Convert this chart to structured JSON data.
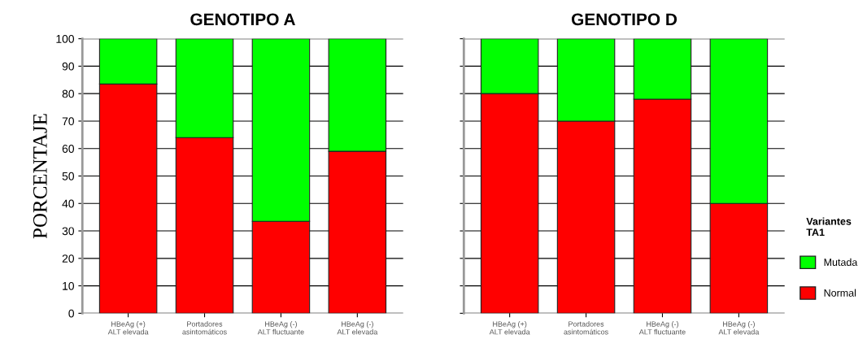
{
  "chart_data": [
    {
      "type": "bar",
      "title": "GENOTIPO A",
      "ylabel": "PORCENTAJE",
      "stacked": true,
      "categories": [
        "HBeAg (+)\nALT elevada",
        "Portadores\nasintomáticos",
        "HBeAg (-)\nALT fluctuante",
        "HBeAg (-)\nALT elevada"
      ],
      "series": [
        {
          "color": "#ff0000",
          "values": [
            83.5,
            64,
            33.5,
            59
          ]
        },
        {
          "color": "#00ff00",
          "values": [
            16.5,
            36,
            66.5,
            41
          ]
        }
      ],
      "ylim": [
        0,
        100
      ],
      "yticks": [
        0,
        10,
        20,
        30,
        40,
        50,
        60,
        70,
        80,
        90,
        100
      ],
      "grid": "y"
    },
    {
      "type": "bar",
      "title": "GENOTIPO D",
      "legend_title": "Variantes\nTA1",
      "stacked": true,
      "categories": [
        "HBeAg (+)\nALT elevada",
        "Portadores\nasintomáticos",
        "HBeAg (-)\nALT fluctuante",
        "HBeAg (-)\nALT elevada"
      ],
      "series": [
        {
          "name": "Normal",
          "color": "#ff0000",
          "values": [
            80,
            70,
            78,
            40
          ]
        },
        {
          "name": "Mutada",
          "color": "#00ff00",
          "values": [
            20,
            30,
            22,
            60
          ]
        }
      ],
      "ylim": [
        0,
        100
      ],
      "yticks": [
        0,
        10,
        20,
        30,
        40,
        50,
        60,
        70,
        80,
        90,
        100
      ],
      "grid": "y",
      "legend": "right",
      "tick_labels": "x"
    }
  ]
}
